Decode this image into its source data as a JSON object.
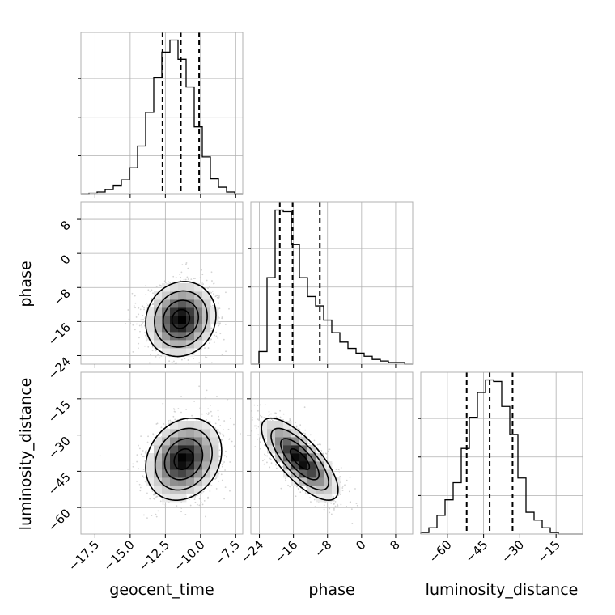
{
  "chart_data": {
    "type": "corner",
    "parameters": [
      "geocent_time",
      "phase",
      "luminosity_distance"
    ],
    "axis_labels": {
      "geocent_time": "geocent_time",
      "phase": "phase",
      "luminosity_distance": "luminosity_distance"
    },
    "ranges": {
      "geocent_time": [
        -18.5,
        -7.0
      ],
      "phase": [
        -26.0,
        12.0
      ],
      "luminosity_distance": [
        -71.0,
        -4.0
      ]
    },
    "ticks": {
      "geocent_time": {
        "values": [
          -17.5,
          -15.0,
          -12.5,
          -10.0,
          -7.5
        ],
        "labels": [
          "−17.5",
          "−15.0",
          "−12.5",
          "−10.0",
          "−7.5"
        ]
      },
      "phase": {
        "values": [
          -24,
          -16,
          -8,
          0,
          8
        ],
        "labels": [
          "−24",
          "−16",
          "−8",
          "0",
          "8"
        ]
      },
      "phase_y": {
        "values": [
          8,
          0,
          -8,
          -16,
          -24
        ],
        "labels": [
          "8",
          "0",
          "−8",
          "−16",
          "−24"
        ]
      },
      "luminosity_distance": {
        "values": [
          -60,
          -45,
          -30,
          -15
        ],
        "labels": [
          "−60",
          "−45",
          "−30",
          "−15"
        ]
      },
      "luminosity_distance_y": {
        "values": [
          -15,
          -30,
          -45,
          -60
        ],
        "labels": [
          "−15",
          "−30",
          "−45",
          "−60"
        ]
      }
    },
    "quantiles": {
      "geocent_time": [
        -12.7,
        -11.4,
        -10.1
      ],
      "phase": [
        -19.2,
        -16.2,
        -9.8
      ],
      "luminosity_distance": [
        -52.0,
        -42.5,
        -33.0
      ]
    },
    "histograms": {
      "geocent_time": {
        "edges": [
          -18.5,
          -17.925,
          -17.35,
          -16.775,
          -16.2,
          -15.625,
          -15.05,
          -14.475,
          -13.9,
          -13.325,
          -12.75,
          -12.175,
          -11.6,
          -11.025,
          -10.45,
          -9.875,
          -9.3,
          -8.725,
          -8.15,
          -7.575,
          -7.0
        ],
        "counts": [
          0,
          1,
          2,
          4,
          7,
          12,
          22,
          40,
          68,
          97,
          118,
          128,
          112,
          89,
          56,
          31,
          13,
          6,
          2,
          0
        ]
      },
      "phase": {
        "edges": [
          -26.0,
          -24.1,
          -22.2,
          -20.3,
          -18.4,
          -16.5,
          -14.6,
          -12.7,
          -10.8,
          -8.9,
          -7.0,
          -5.1,
          -3.2,
          -1.3,
          0.6,
          2.5,
          4.4,
          6.3,
          8.2,
          10.1,
          12.0
        ],
        "counts": [
          0,
          8,
          55,
          98,
          97,
          76,
          55,
          43,
          37,
          28,
          20,
          14,
          10,
          7,
          5,
          3,
          2,
          1,
          1,
          0
        ]
      },
      "luminosity_distance": {
        "edges": [
          -71.0,
          -67.65,
          -64.3,
          -60.95,
          -57.6,
          -54.25,
          -50.9,
          -47.55,
          -44.2,
          -40.85,
          -37.5,
          -34.15,
          -30.8,
          -27.45,
          -24.1,
          -20.75,
          -17.4,
          -14.05,
          -10.7,
          -7.35,
          -4.0
        ],
        "counts": [
          1,
          4,
          12,
          22,
          33,
          55,
          75,
          91,
          99,
          98,
          82,
          64,
          36,
          14,
          9,
          4,
          1,
          0,
          0,
          0
        ]
      }
    },
    "joint": [
      {
        "x": "geocent_time",
        "y": "phase",
        "mean": [
          -11.4,
          -15.4
        ],
        "sd": [
          1.25,
          4.4
        ],
        "rho": 0.1
      },
      {
        "x": "geocent_time",
        "y": "luminosity_distance",
        "mean": [
          -11.2,
          -40.0
        ],
        "sd": [
          1.35,
          8.5
        ],
        "rho": 0.2
      },
      {
        "x": "phase",
        "y": "luminosity_distance",
        "mean": [
          -14.5,
          -40.0
        ],
        "sd": [
          4.5,
          8.5
        ],
        "rho": -0.75
      }
    ],
    "grid": true,
    "colors": {
      "hist": "#000000",
      "quantile_line": "#000000",
      "contour": "#000000",
      "points": "#c8c8c8",
      "grid": "#b0b0b0",
      "frame": "#b0b0b0"
    }
  }
}
